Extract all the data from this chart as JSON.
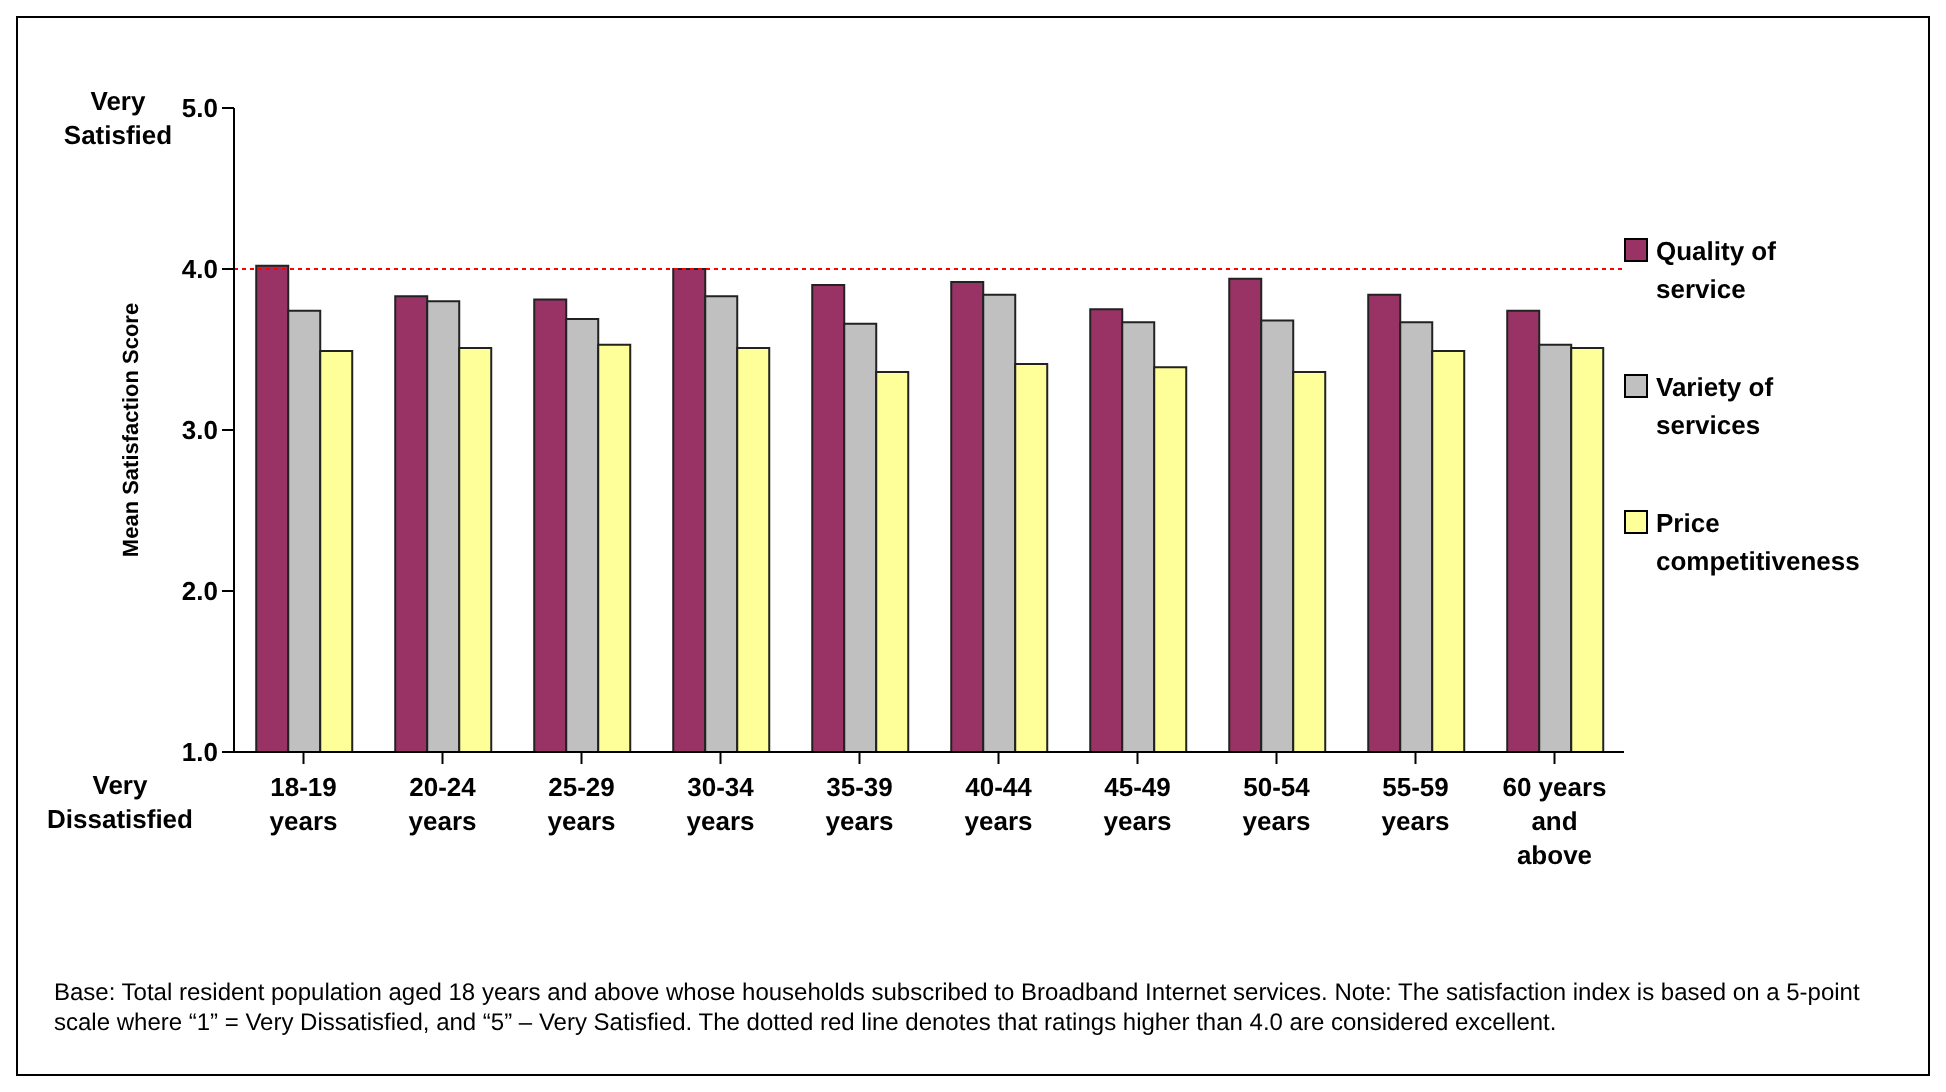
{
  "chart_data": {
    "type": "bar",
    "ylabel": "Mean Satisfaction Score",
    "categories": [
      "18-19 years",
      "20-24 years",
      "25-29 years",
      "30-34 years",
      "35-39 years",
      "40-44 years",
      "45-49 years",
      "50-54 years",
      "55-59 years",
      "60 years and above"
    ],
    "series": [
      {
        "name": "Quality of service",
        "color": "#993366",
        "values": [
          4.02,
          3.83,
          3.81,
          4.0,
          3.9,
          3.92,
          3.75,
          3.94,
          3.84,
          3.74
        ]
      },
      {
        "name": "Variety of services",
        "color": "#c0c0c0",
        "values": [
          3.74,
          3.8,
          3.69,
          3.83,
          3.66,
          3.84,
          3.67,
          3.68,
          3.67,
          3.53
        ]
      },
      {
        "name": "Price competitiveness",
        "color": "#ffff99",
        "values": [
          3.49,
          3.51,
          3.53,
          3.51,
          3.36,
          3.41,
          3.39,
          3.36,
          3.49,
          3.51
        ]
      }
    ],
    "ylim": [
      1.0,
      5.0
    ],
    "yticks": [
      {
        "value": 1,
        "label": "1.0"
      },
      {
        "value": 2,
        "label": "2.0"
      },
      {
        "value": 3,
        "label": "3.0"
      },
      {
        "value": 4,
        "label": "4.0"
      },
      {
        "value": 5,
        "label": "5.0"
      }
    ],
    "ref_lines": [
      {
        "axis": "y",
        "value": 4.0,
        "color": "#ff0000",
        "line_style": "dotted"
      }
    ],
    "legend": "right",
    "grid": false,
    "annotations": [
      "Very Satisfied",
      "Very Dissatisfied",
      "Base: Total resident population aged 18 years and above whose households subscribed to Broadband Internet services.  Note: The satisfaction index is based on a 5-point scale where “1” = Very Dissatisfied, and “5” – Very Satisfied.  The dotted red line denotes that ratings higher than 4.0 are considered excellent."
    ]
  }
}
